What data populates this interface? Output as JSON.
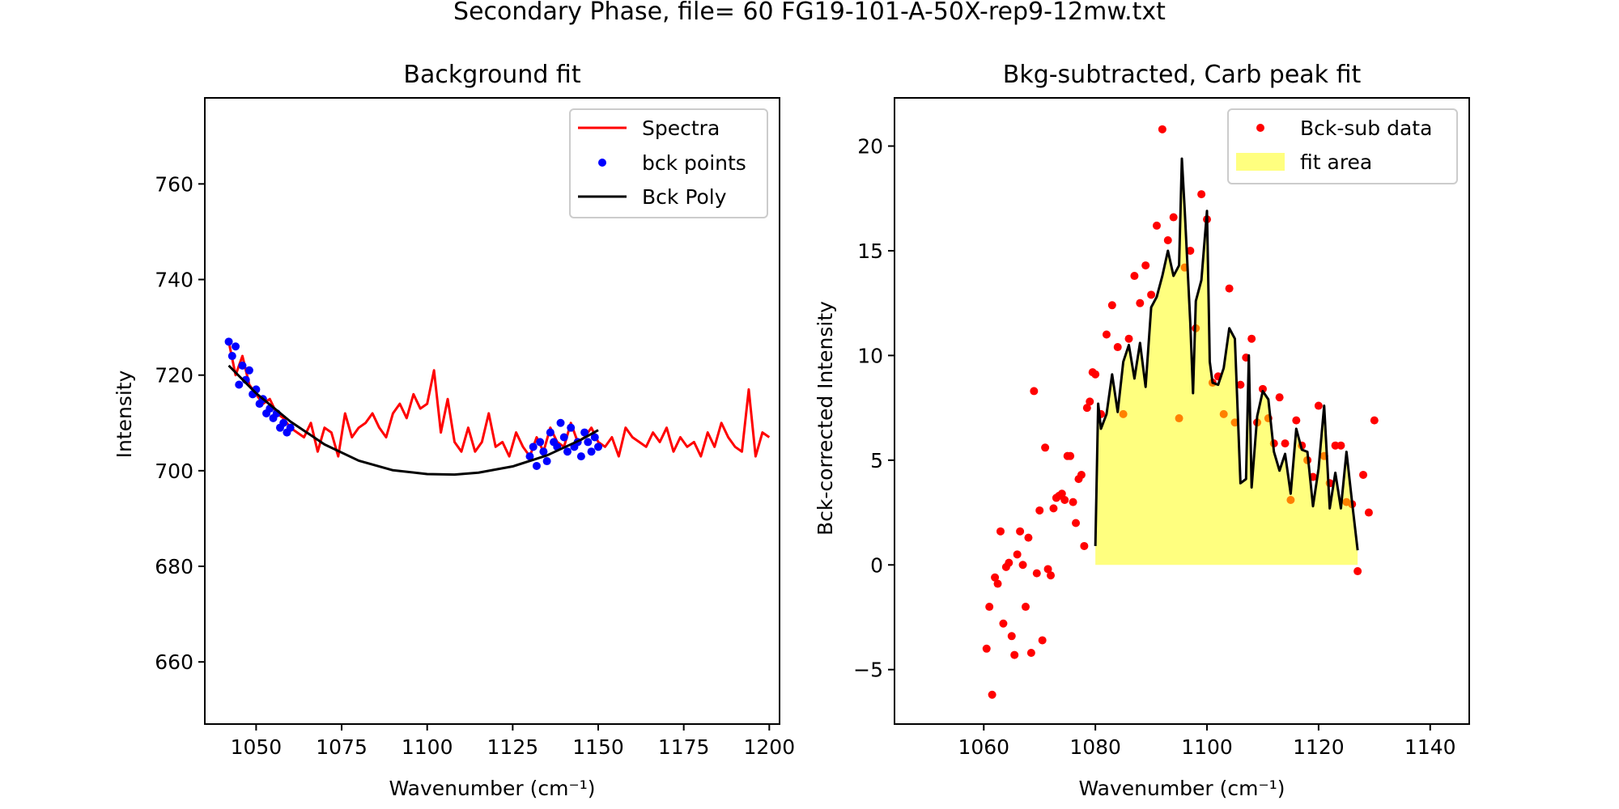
{
  "suptitle": "Secondary Phase, file= 60 FG19-101-A-50X-rep9-12mw.txt",
  "colors": {
    "spectra": "#ff0000",
    "bck_points": "#0000ff",
    "bck_poly": "#000000",
    "fit_area": "#ffff00",
    "bck_sub": "#ff0000",
    "fit_line": "#000000"
  },
  "chart_data": [
    {
      "type": "line",
      "title": "Background fit",
      "xlabel": "Wavenumber (cm⁻¹)",
      "ylabel": "Intensity",
      "xlim": [
        1035,
        1203
      ],
      "ylim": [
        647,
        778
      ],
      "xticks": [
        1050,
        1075,
        1100,
        1125,
        1150,
        1175,
        1200
      ],
      "yticks": [
        660,
        680,
        700,
        720,
        740,
        760
      ],
      "legend": {
        "placement": "upper right",
        "entries": [
          {
            "label": "Spectra",
            "style": "line",
            "color": "#ff0000"
          },
          {
            "label": "bck points",
            "style": "dot",
            "color": "#0000ff"
          },
          {
            "label": "Bck Poly",
            "style": "line",
            "color": "#000000"
          }
        ]
      },
      "series": [
        {
          "name": "Spectra",
          "style": "line",
          "color": "#ff0000",
          "x": [
            1042,
            1044,
            1046,
            1048,
            1050,
            1052,
            1054,
            1056,
            1058,
            1060,
            1062,
            1064,
            1066,
            1068,
            1070,
            1072,
            1074,
            1076,
            1078,
            1080,
            1082,
            1084,
            1086,
            1088,
            1090,
            1092,
            1094,
            1096,
            1098,
            1100,
            1102,
            1104,
            1106,
            1108,
            1110,
            1112,
            1114,
            1116,
            1118,
            1120,
            1122,
            1124,
            1126,
            1128,
            1130,
            1132,
            1134,
            1136,
            1138,
            1140,
            1142,
            1144,
            1146,
            1148,
            1150,
            1152,
            1154,
            1156,
            1158,
            1160,
            1162,
            1164,
            1166,
            1168,
            1170,
            1172,
            1174,
            1176,
            1178,
            1180,
            1182,
            1184,
            1186,
            1188,
            1190,
            1192,
            1194,
            1196,
            1198,
            1200
          ],
          "y": [
            727,
            720,
            724,
            718,
            716,
            714,
            715,
            712,
            711,
            709,
            708,
            707,
            710,
            704,
            709,
            708,
            703,
            712,
            707,
            709,
            710,
            712,
            709,
            707,
            712,
            714,
            711,
            716,
            713,
            714,
            721,
            708,
            715,
            706,
            704,
            709,
            704,
            706,
            712,
            705,
            706,
            703,
            708,
            705,
            703,
            707,
            704,
            709,
            706,
            705,
            710,
            706,
            707,
            709,
            706,
            705,
            707,
            703,
            709,
            707,
            706,
            705,
            708,
            706,
            709,
            704,
            707,
            705,
            706,
            703,
            708,
            705,
            710,
            707,
            705,
            704,
            717,
            703,
            708,
            707
          ]
        },
        {
          "name": "bck points",
          "style": "dot",
          "color": "#0000ff",
          "x": [
            1042,
            1043,
            1044,
            1045,
            1046,
            1047,
            1048,
            1049,
            1050,
            1051,
            1052,
            1053,
            1054,
            1055,
            1056,
            1057,
            1058,
            1059,
            1060,
            1130,
            1131,
            1132,
            1133,
            1134,
            1135,
            1136,
            1137,
            1138,
            1139,
            1140,
            1141,
            1142,
            1143,
            1144,
            1145,
            1146,
            1147,
            1148,
            1149,
            1150
          ],
          "y": [
            727,
            724,
            726,
            718,
            722,
            719,
            721,
            716,
            717,
            714,
            715,
            712,
            713,
            711,
            712,
            709,
            710,
            708,
            709,
            703,
            705,
            701,
            706,
            704,
            702,
            708,
            706,
            705,
            710,
            707,
            704,
            709,
            705,
            706,
            703,
            708,
            706,
            704,
            707,
            705
          ]
        },
        {
          "name": "Bck Poly",
          "style": "line",
          "color": "#000000",
          "x": [
            1042,
            1050,
            1060,
            1070,
            1080,
            1090,
            1100,
            1108,
            1115,
            1125,
            1135,
            1145,
            1150
          ],
          "y": [
            722,
            716.2,
            710.3,
            705.5,
            702.1,
            700.1,
            699.3,
            699.2,
            699.6,
            700.9,
            703.2,
            706.5,
            708.5
          ]
        }
      ]
    },
    {
      "type": "scatter",
      "title": "Bkg-subtracted, Carb peak fit",
      "xlabel": "Wavenumber (cm⁻¹)",
      "ylabel": "Bck-corrected Intensity",
      "xlim": [
        1044,
        1147
      ],
      "ylim": [
        -7.6,
        22.3
      ],
      "xticks": [
        1060,
        1080,
        1100,
        1120,
        1140
      ],
      "yticks": [
        -5,
        0,
        5,
        10,
        15,
        20
      ],
      "legend": {
        "placement": "upper right",
        "entries": [
          {
            "label": "Bck-sub data",
            "style": "dot",
            "color": "#ff0000"
          },
          {
            "label": "fit area",
            "style": "patch",
            "color": "#ffff00"
          }
        ]
      },
      "series": [
        {
          "name": "Bck-sub data",
          "style": "dot",
          "color": "#ff0000",
          "x": [
            1060.5,
            1061,
            1061.5,
            1062,
            1062.5,
            1063,
            1063.5,
            1064,
            1064.5,
            1065,
            1065.5,
            1066,
            1066.5,
            1067,
            1067.5,
            1068,
            1068.5,
            1069,
            1069.5,
            1070,
            1070.5,
            1071,
            1071.5,
            1072,
            1072.5,
            1073,
            1073.5,
            1074,
            1074.5,
            1075,
            1075.5,
            1076,
            1076.5,
            1077,
            1077.5,
            1078,
            1078.5,
            1079,
            1079.5,
            1080,
            1081,
            1082,
            1083,
            1084,
            1085,
            1086,
            1087,
            1088,
            1089,
            1090,
            1091,
            1092,
            1093,
            1094,
            1095,
            1096,
            1097,
            1098,
            1099,
            1100,
            1101,
            1102,
            1103,
            1104,
            1105,
            1106,
            1107,
            1108,
            1109,
            1110,
            1111,
            1112,
            1113,
            1114,
            1115,
            1116,
            1117,
            1118,
            1119,
            1120,
            1121,
            1122,
            1123,
            1124,
            1125,
            1126,
            1127,
            1128,
            1129,
            1130
          ],
          "y": [
            -4,
            -2,
            -6.2,
            -0.6,
            -0.9,
            1.6,
            -2.8,
            -0.1,
            0.1,
            -3.4,
            -4.3,
            0.5,
            1.6,
            0,
            -2,
            1.3,
            -4.2,
            8.3,
            -0.4,
            2.6,
            -3.6,
            5.6,
            -0.2,
            -0.5,
            2.7,
            3.2,
            3.3,
            3.4,
            3.1,
            5.2,
            5.2,
            3,
            2,
            4.1,
            4.3,
            0.9,
            7.5,
            7.8,
            9.2,
            9.1,
            7.2,
            11,
            12.4,
            10.4,
            7.2,
            10.8,
            13.8,
            12.5,
            14.3,
            12.9,
            16.2,
            20.8,
            15.5,
            16.6,
            7,
            14.2,
            15,
            11.3,
            17.7,
            16.5,
            8.7,
            9,
            7.2,
            13.2,
            6.8,
            8.6,
            9.9,
            10.8,
            6.8,
            8.4,
            7,
            5.8,
            8,
            5.8,
            3.1,
            6.9,
            5.7,
            5,
            4.2,
            7.6,
            5.2,
            3.9,
            5.7,
            5.7,
            3,
            2.9,
            -0.3,
            4.3,
            2.5,
            6.9
          ]
        },
        {
          "name": "fit area",
          "style": "area",
          "color": "#ffff00",
          "x": [
            1080,
            1080.5,
            1081,
            1082,
            1083,
            1084,
            1085,
            1086,
            1087,
            1088,
            1089,
            1090,
            1091,
            1092,
            1093,
            1094,
            1095,
            1095.5,
            1096,
            1097,
            1097.5,
            1098,
            1099,
            1100,
            1100.5,
            1101,
            1102,
            1103,
            1104,
            1105,
            1106,
            1107,
            1107.5,
            1108,
            1109,
            1110,
            1111,
            1112,
            1113,
            1114,
            1115,
            1116,
            1117,
            1118,
            1119,
            1120,
            1121,
            1122,
            1123,
            1124,
            1125,
            1126,
            1127
          ],
          "y": [
            0.9,
            7.7,
            6.5,
            7.2,
            9.1,
            7.3,
            9.7,
            10.5,
            8.9,
            10.6,
            8.5,
            12.3,
            12.8,
            13.8,
            15,
            13.8,
            14.3,
            19.4,
            17,
            11.6,
            8.2,
            12.6,
            13.6,
            16.9,
            9.7,
            8.7,
            8.6,
            9.4,
            11.3,
            10.8,
            3.9,
            4.1,
            10,
            3.7,
            7.1,
            8.3,
            7.9,
            5.4,
            4.5,
            5.3,
            3.4,
            6.5,
            5.5,
            5.4,
            2.8,
            4.6,
            7.6,
            2.7,
            4.4,
            2.7,
            5.4,
            3,
            0.7
          ]
        },
        {
          "name": "",
          "style": "line",
          "color": "#000000",
          "x": [
            1080,
            1080.5,
            1081,
            1082,
            1083,
            1084,
            1085,
            1086,
            1087,
            1088,
            1089,
            1090,
            1091,
            1092,
            1093,
            1094,
            1095,
            1095.5,
            1096,
            1097,
            1097.5,
            1098,
            1099,
            1100,
            1100.5,
            1101,
            1102,
            1103,
            1104,
            1105,
            1106,
            1107,
            1107.5,
            1108,
            1109,
            1110,
            1111,
            1112,
            1113,
            1114,
            1115,
            1116,
            1117,
            1118,
            1119,
            1120,
            1121,
            1122,
            1123,
            1124,
            1125,
            1126,
            1127
          ],
          "y": [
            0.9,
            7.7,
            6.5,
            7.2,
            9.1,
            7.3,
            9.7,
            10.5,
            8.9,
            10.6,
            8.5,
            12.3,
            12.8,
            13.8,
            15,
            13.8,
            14.3,
            19.4,
            17,
            11.6,
            8.2,
            12.6,
            13.6,
            16.9,
            9.7,
            8.7,
            8.6,
            9.4,
            11.3,
            10.8,
            3.9,
            4.1,
            10,
            3.7,
            7.1,
            8.3,
            7.9,
            5.4,
            4.5,
            5.3,
            3.4,
            6.5,
            5.5,
            5.4,
            2.8,
            4.6,
            7.6,
            2.7,
            4.4,
            2.7,
            5.4,
            3,
            0.7
          ]
        }
      ]
    }
  ]
}
